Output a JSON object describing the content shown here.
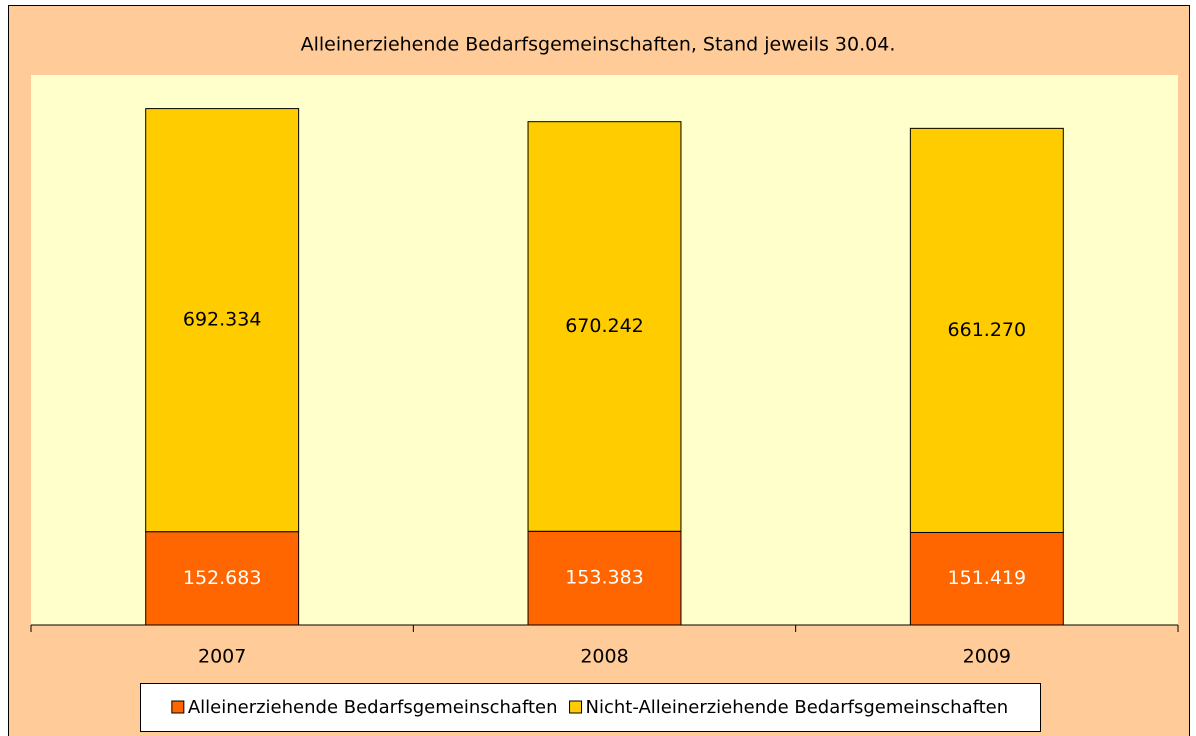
{
  "chart_data": {
    "type": "stacked_bar",
    "title": "Alleinerziehende Bedarfsgemeinschaften, Stand jeweils 30.04.",
    "categories": [
      "2007",
      "2008",
      "2009"
    ],
    "series": [
      {
        "name": "Alleinerziehende Bedarfsgemeinschaften",
        "color": "#ff6600",
        "values": [
          152683,
          153383,
          151419
        ],
        "value_labels": [
          "152.683",
          "153.383",
          "151.419"
        ]
      },
      {
        "name": "Nicht-Alleinerziehende Bedarfsgemeinschaften",
        "color": "#ffcc00",
        "values": [
          692334,
          670242,
          661270
        ],
        "value_labels": [
          "692.334",
          "670.242",
          "661.270"
        ]
      }
    ],
    "ylim": [
      0,
      900000
    ],
    "legend": "bottom"
  }
}
